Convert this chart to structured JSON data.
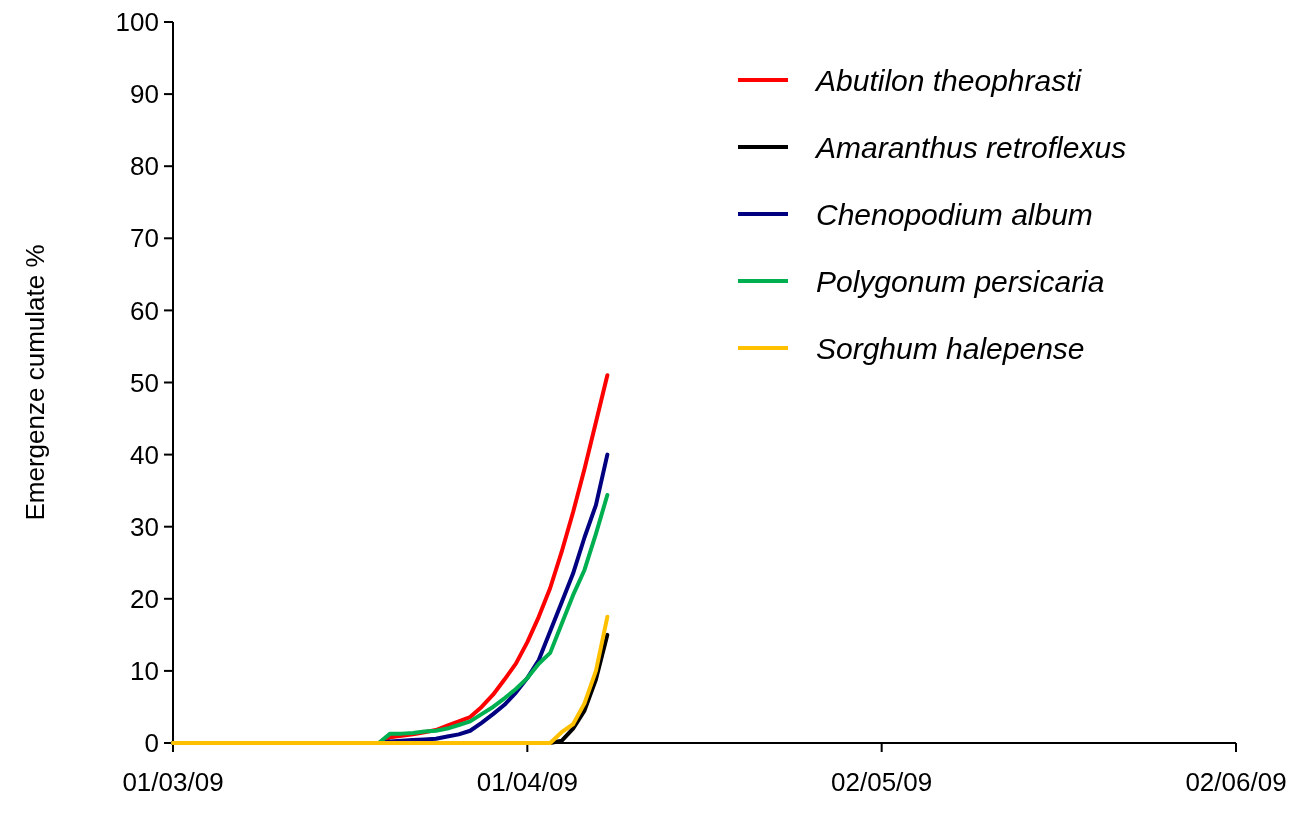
{
  "chart_data": {
    "type": "line",
    "ylabel": "Emergenze cumulate %",
    "x": [
      "2009-03-01",
      "2009-03-18",
      "2009-03-19",
      "2009-03-20",
      "2009-03-21",
      "2009-03-22",
      "2009-03-23",
      "2009-03-24",
      "2009-03-25",
      "2009-03-26",
      "2009-03-27",
      "2009-03-28",
      "2009-03-29",
      "2009-03-30",
      "2009-03-31",
      "2009-04-01",
      "2009-04-02",
      "2009-04-03",
      "2009-04-04",
      "2009-04-05",
      "2009-04-06",
      "2009-04-07",
      "2009-04-08"
    ],
    "series": [
      {
        "name": "Abutilon theophrasti",
        "color": "#ff0000",
        "values": [
          0,
          0,
          0,
          0.8,
          1.0,
          1.2,
          1.5,
          1.8,
          2.4,
          3.0,
          3.6,
          5.0,
          6.7,
          8.8,
          11,
          14,
          17.5,
          21.5,
          26.5,
          32,
          38,
          44.5,
          51
        ]
      },
      {
        "name": "Amaranthus retroflexus",
        "color": "#000000",
        "values": [
          null,
          null,
          null,
          null,
          null,
          null,
          null,
          null,
          null,
          null,
          null,
          null,
          null,
          null,
          null,
          null,
          null,
          0,
          0.3,
          2.0,
          4.5,
          8.8,
          15
        ]
      },
      {
        "name": "Chenopodium album",
        "color": "#000080",
        "values": [
          0,
          0,
          0,
          0.2,
          0.3,
          0.4,
          0.5,
          0.6,
          0.9,
          1.2,
          1.7,
          2.8,
          4.0,
          5.3,
          7.0,
          9.0,
          11.5,
          15.5,
          19.5,
          23.5,
          28.5,
          33,
          40
        ]
      },
      {
        "name": "Polygonum persicaria",
        "color": "#00b050",
        "values": [
          0,
          0,
          0,
          1.3,
          1.3,
          1.4,
          1.6,
          1.7,
          2.0,
          2.5,
          3.0,
          4.0,
          5.0,
          6.2,
          7.5,
          9.0,
          11,
          12.5,
          16.5,
          20.5,
          24,
          29,
          34.4
        ]
      },
      {
        "name": "Sorghum halepense",
        "color": "#ffc000",
        "values": [
          0,
          0,
          0,
          0,
          0,
          0,
          0,
          0,
          0,
          0,
          0,
          0,
          0,
          0,
          0,
          0,
          0,
          0,
          1.5,
          2.6,
          5.5,
          10,
          17.5
        ]
      }
    ],
    "xlim": [
      "2009-03-01",
      "2009-06-02"
    ],
    "xticks": [
      {
        "value": "2009-03-01",
        "label": "01/03/09"
      },
      {
        "value": "2009-04-01",
        "label": "01/04/09"
      },
      {
        "value": "2009-05-02",
        "label": "02/05/09"
      },
      {
        "value": "2009-06-02",
        "label": "02/06/09"
      }
    ],
    "ylim": [
      0,
      100
    ],
    "yticks": [
      0,
      10,
      20,
      30,
      40,
      50,
      60,
      70,
      80,
      90,
      100
    ],
    "grid": false,
    "legend": "top right",
    "line_style": "solid"
  }
}
